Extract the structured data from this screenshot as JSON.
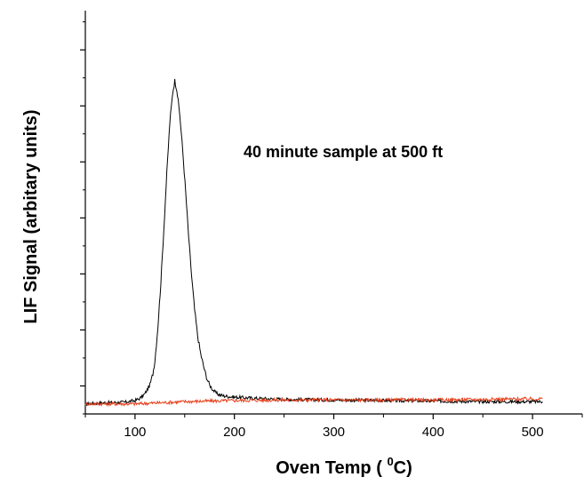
{
  "chart_data": {
    "type": "line",
    "xlabel": "Oven Temp ( ",
    "xlabel_sup": "0",
    "xlabel_end": "C)",
    "ylabel": "LIF Signal (arbitary units)",
    "annotation": "40 minute sample at 500 ft",
    "xlim": [
      50,
      550
    ],
    "ylim": [
      0,
      7.2
    ],
    "x_ticks": [
      100,
      200,
      300,
      400,
      500
    ],
    "x_tick_labels": [
      "100",
      "200",
      "300",
      "400",
      "500"
    ],
    "y_major_ticks": [
      0.5,
      1.5,
      2.5,
      3.5,
      4.5,
      5.5,
      6.5
    ],
    "y_minor_ticks": [
      0,
      1,
      2,
      3,
      4,
      5,
      6,
      7
    ],
    "grid": false,
    "legend": "none",
    "series": [
      {
        "color": "#000000",
        "x": [
          50,
          70,
          90,
          100,
          105,
          110,
          115,
          118,
          120,
          123,
          126,
          129,
          132,
          135,
          138,
          140,
          142,
          145,
          148,
          151,
          154,
          157,
          160,
          163,
          166,
          169,
          172,
          175,
          178,
          181,
          185,
          190,
          200,
          220,
          250,
          300,
          350,
          400,
          450,
          500,
          510
        ],
        "y": [
          0.18,
          0.2,
          0.21,
          0.24,
          0.28,
          0.36,
          0.52,
          0.72,
          0.95,
          1.55,
          2.35,
          3.3,
          4.3,
          5.2,
          5.75,
          5.95,
          5.8,
          5.35,
          4.7,
          3.95,
          3.15,
          2.45,
          1.85,
          1.4,
          1.08,
          0.85,
          0.65,
          0.52,
          0.44,
          0.38,
          0.34,
          0.32,
          0.3,
          0.28,
          0.26,
          0.25,
          0.24,
          0.23,
          0.22,
          0.22,
          0.22
        ]
      },
      {
        "color": "#e8401c",
        "x": [
          50,
          100,
          150,
          200,
          250,
          300,
          350,
          400,
          450,
          500,
          510
        ],
        "y": [
          0.18,
          0.18,
          0.22,
          0.24,
          0.25,
          0.25,
          0.25,
          0.25,
          0.26,
          0.27,
          0.27
        ]
      }
    ]
  }
}
